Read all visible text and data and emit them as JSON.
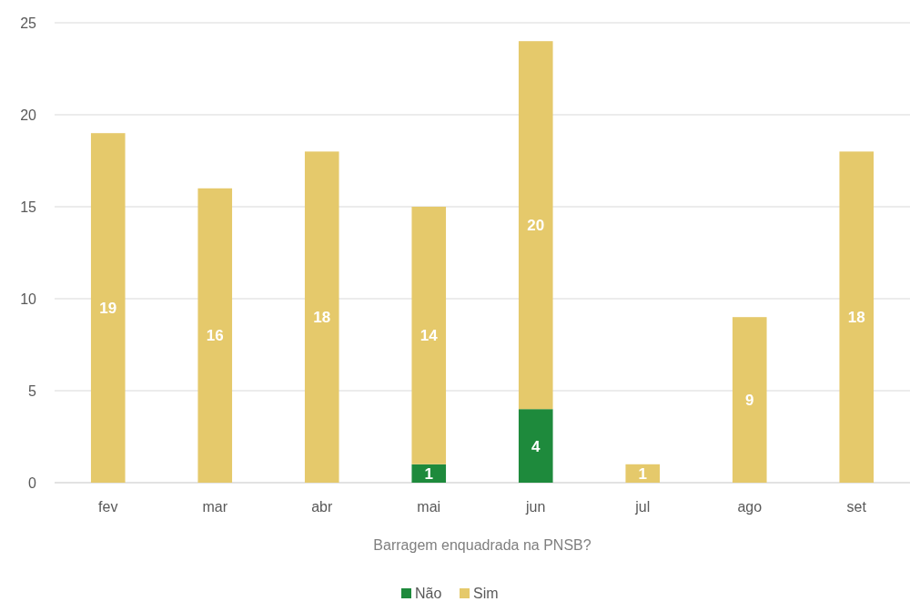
{
  "chart_data": {
    "type": "bar",
    "stacked": true,
    "xlabel": "Barragem enquadrada na PNSB?",
    "categories": [
      "fev",
      "mar",
      "abr",
      "mai",
      "jun",
      "jul",
      "ago",
      "set"
    ],
    "series": [
      {
        "name": "Não",
        "color": "#1e8a3c",
        "values": [
          null,
          null,
          null,
          1,
          4,
          null,
          null,
          null
        ]
      },
      {
        "name": "Sim",
        "color": "#e5c96b",
        "values": [
          19,
          16,
          18,
          14,
          20,
          1,
          9,
          18
        ]
      }
    ],
    "ylim": [
      0,
      25
    ],
    "yticks": [
      0,
      5,
      10,
      15,
      20,
      25
    ],
    "grid": "y",
    "legend": "bottom",
    "data_labels": true
  }
}
